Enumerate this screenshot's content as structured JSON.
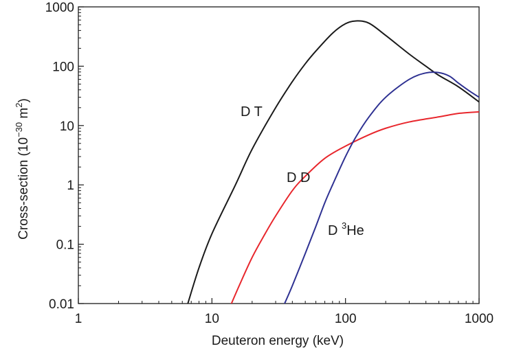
{
  "chart_data": {
    "type": "line",
    "x_scale": "log",
    "y_scale": "log",
    "xlim": [
      1,
      1000
    ],
    "ylim": [
      0.01,
      1000
    ],
    "xlabel": "Deuteron energy (keV)",
    "ylabel": {
      "prefix": "Cross-section (10",
      "exp": "−30",
      "middle": " m",
      "exp2": "2",
      "suffix": ")"
    },
    "x_ticks": [
      {
        "value": 1,
        "label": "1"
      },
      {
        "value": 10,
        "label": "10"
      },
      {
        "value": 100,
        "label": "100"
      },
      {
        "value": 1000,
        "label": "1000"
      }
    ],
    "y_ticks": [
      {
        "value": 0.01,
        "label": "0.01"
      },
      {
        "value": 0.1,
        "label": "0.1"
      },
      {
        "value": 1,
        "label": "1"
      },
      {
        "value": 10,
        "label": "10"
      },
      {
        "value": 100,
        "label": "100"
      },
      {
        "value": 1000,
        "label": "1000"
      }
    ],
    "grid": false,
    "series": [
      {
        "name": "D T",
        "label_parts": {
          "main": "D T"
        },
        "color": "#1a1a1a",
        "x": [
          6.6,
          8,
          10,
          15,
          20,
          30,
          40,
          50,
          60,
          80,
          100,
          120,
          150,
          200,
          300,
          400,
          500,
          700,
          1000
        ],
        "y": [
          0.01,
          0.04,
          0.15,
          1.0,
          4.0,
          20,
          55,
          110,
          180,
          360,
          520,
          580,
          530,
          330,
          160,
          100,
          70,
          45,
          25
        ]
      },
      {
        "name": "D D",
        "label_parts": {
          "main": "D D"
        },
        "color": "#e8262c",
        "x": [
          14,
          16,
          20,
          25,
          30,
          40,
          50,
          70,
          100,
          150,
          200,
          300,
          500,
          700,
          1000
        ],
        "y": [
          0.01,
          0.02,
          0.06,
          0.15,
          0.3,
          0.8,
          1.4,
          2.8,
          4.5,
          7.0,
          9.0,
          11.5,
          14,
          16,
          17
        ]
      },
      {
        "name": "D 3He",
        "label_parts": {
          "pre": "D ",
          "sup": "3",
          "post": "He"
        },
        "color": "#2e3192",
        "x": [
          35,
          40,
          50,
          60,
          70,
          80,
          100,
          120,
          150,
          200,
          300,
          400,
          500,
          600,
          700,
          850,
          1000
        ],
        "y": [
          0.01,
          0.02,
          0.07,
          0.2,
          0.5,
          1.0,
          3.0,
          6.5,
          14,
          30,
          60,
          77,
          78,
          68,
          52,
          38,
          30
        ]
      }
    ]
  },
  "colors": {
    "axis": "#1a1a1a",
    "dt": "#1a1a1a",
    "dd": "#e8262c",
    "d3he": "#2e3192"
  }
}
